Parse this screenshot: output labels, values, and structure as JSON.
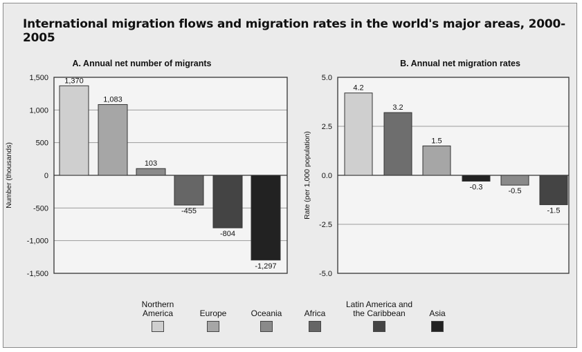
{
  "title": "International migration flows and migration rates in the world's major areas, 2000-2005",
  "legend": [
    {
      "label": "Northern\nAmerica",
      "color": "#cfcfcf"
    },
    {
      "label": "Europe",
      "color": "#a6a6a6"
    },
    {
      "label": "Oceania",
      "color": "#8a8a8a"
    },
    {
      "label": "Africa",
      "color": "#666666"
    },
    {
      "label": "Latin America and\nthe Caribbean",
      "color": "#444444"
    },
    {
      "label": "Asia",
      "color": "#222222"
    }
  ],
  "chart_data": [
    {
      "type": "bar",
      "title": "A. Annual net number of migrants",
      "ylabel": "Number (thousands)",
      "xlabel": "",
      "ylim": [
        -1500,
        1500
      ],
      "yticks": [
        1500,
        1000,
        500,
        0,
        -500,
        -1000,
        -1500
      ],
      "ytick_labels": [
        "1,500",
        "1,000",
        "500",
        "0",
        "-500",
        "-1,000",
        "-1,500"
      ],
      "grid": true,
      "categories": [
        "Northern America",
        "Europe",
        "Oceania",
        "Africa",
        "Latin America and the Caribbean",
        "Asia"
      ],
      "values": [
        1370,
        1083,
        103,
        -455,
        -804,
        -1297
      ],
      "value_labels": [
        "1,370",
        "1,083",
        "103",
        "-455",
        "-804",
        "-1,297"
      ]
    },
    {
      "type": "bar",
      "title": "B. Annual net migration rates",
      "ylabel": "Rate (per 1,000 population)",
      "xlabel": "",
      "ylim": [
        -5.0,
        5.0
      ],
      "yticks": [
        5.0,
        2.5,
        0.0,
        -2.5,
        -5.0
      ],
      "ytick_labels": [
        "5.0",
        "2.5",
        "0.0",
        "-2.5",
        "-5.0"
      ],
      "grid": true,
      "categories": [
        "Northern America",
        "Latin America and the Caribbean",
        "Europe",
        "Asia",
        "Africa",
        "Oceania"
      ],
      "values": [
        4.2,
        3.2,
        1.5,
        -0.3,
        -0.5,
        -1.5
      ],
      "value_labels": [
        "4.2",
        "3.2",
        "1.5",
        "-0.3",
        "-0.5",
        "-1.5"
      ],
      "colors": [
        "#cfcfcf",
        "#6e6e6e",
        "#a6a6a6",
        "#222222",
        "#8a8a8a",
        "#444444"
      ]
    }
  ]
}
